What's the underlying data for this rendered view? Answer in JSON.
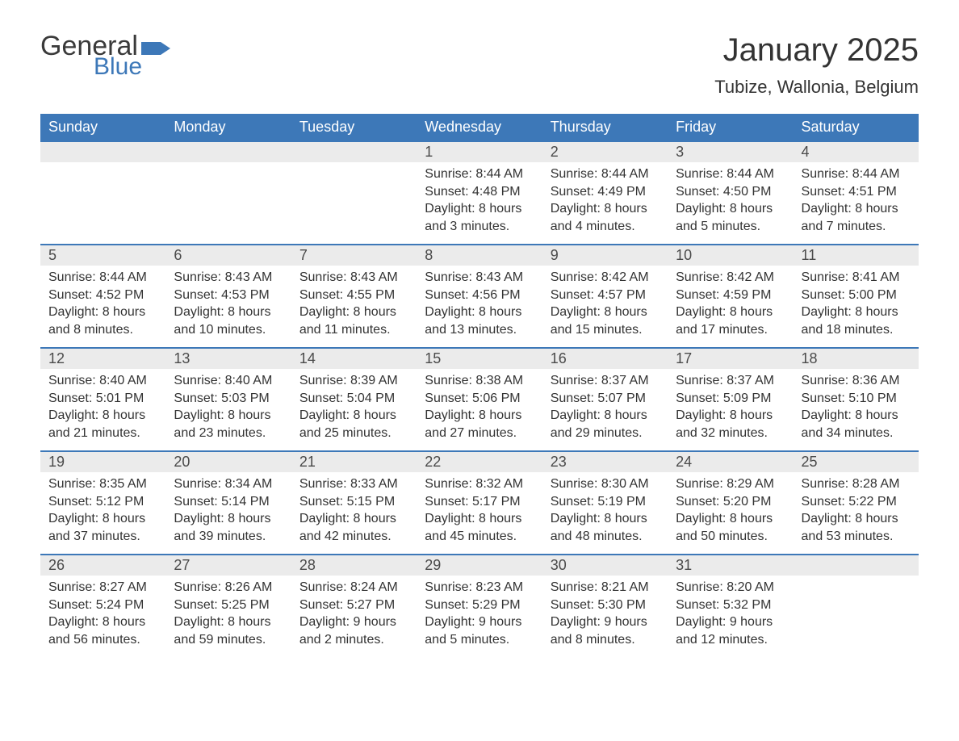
{
  "logo": {
    "word1": "General",
    "word2": "Blue",
    "flag_color": "#3d78b8",
    "text_color_dark": "#3a3a3a"
  },
  "header": {
    "title": "January 2025",
    "location": "Tubize, Wallonia, Belgium"
  },
  "colors": {
    "header_bg": "#3d78b8",
    "header_text": "#ffffff",
    "daynum_bg": "#ebebeb",
    "week_divider": "#3d78b8",
    "body_text": "#333333",
    "page_bg": "#ffffff"
  },
  "weekdays": [
    "Sunday",
    "Monday",
    "Tuesday",
    "Wednesday",
    "Thursday",
    "Friday",
    "Saturday"
  ],
  "labels": {
    "sunrise": "Sunrise:",
    "sunset": "Sunset:",
    "daylight": "Daylight:"
  },
  "weeks": [
    [
      {
        "empty": true
      },
      {
        "empty": true
      },
      {
        "empty": true
      },
      {
        "day": "1",
        "sunrise": "8:44 AM",
        "sunset": "4:48 PM",
        "daylight": "8 hours and 3 minutes."
      },
      {
        "day": "2",
        "sunrise": "8:44 AM",
        "sunset": "4:49 PM",
        "daylight": "8 hours and 4 minutes."
      },
      {
        "day": "3",
        "sunrise": "8:44 AM",
        "sunset": "4:50 PM",
        "daylight": "8 hours and 5 minutes."
      },
      {
        "day": "4",
        "sunrise": "8:44 AM",
        "sunset": "4:51 PM",
        "daylight": "8 hours and 7 minutes."
      }
    ],
    [
      {
        "day": "5",
        "sunrise": "8:44 AM",
        "sunset": "4:52 PM",
        "daylight": "8 hours and 8 minutes."
      },
      {
        "day": "6",
        "sunrise": "8:43 AM",
        "sunset": "4:53 PM",
        "daylight": "8 hours and 10 minutes."
      },
      {
        "day": "7",
        "sunrise": "8:43 AM",
        "sunset": "4:55 PM",
        "daylight": "8 hours and 11 minutes."
      },
      {
        "day": "8",
        "sunrise": "8:43 AM",
        "sunset": "4:56 PM",
        "daylight": "8 hours and 13 minutes."
      },
      {
        "day": "9",
        "sunrise": "8:42 AM",
        "sunset": "4:57 PM",
        "daylight": "8 hours and 15 minutes."
      },
      {
        "day": "10",
        "sunrise": "8:42 AM",
        "sunset": "4:59 PM",
        "daylight": "8 hours and 17 minutes."
      },
      {
        "day": "11",
        "sunrise": "8:41 AM",
        "sunset": "5:00 PM",
        "daylight": "8 hours and 18 minutes."
      }
    ],
    [
      {
        "day": "12",
        "sunrise": "8:40 AM",
        "sunset": "5:01 PM",
        "daylight": "8 hours and 21 minutes."
      },
      {
        "day": "13",
        "sunrise": "8:40 AM",
        "sunset": "5:03 PM",
        "daylight": "8 hours and 23 minutes."
      },
      {
        "day": "14",
        "sunrise": "8:39 AM",
        "sunset": "5:04 PM",
        "daylight": "8 hours and 25 minutes."
      },
      {
        "day": "15",
        "sunrise": "8:38 AM",
        "sunset": "5:06 PM",
        "daylight": "8 hours and 27 minutes."
      },
      {
        "day": "16",
        "sunrise": "8:37 AM",
        "sunset": "5:07 PM",
        "daylight": "8 hours and 29 minutes."
      },
      {
        "day": "17",
        "sunrise": "8:37 AM",
        "sunset": "5:09 PM",
        "daylight": "8 hours and 32 minutes."
      },
      {
        "day": "18",
        "sunrise": "8:36 AM",
        "sunset": "5:10 PM",
        "daylight": "8 hours and 34 minutes."
      }
    ],
    [
      {
        "day": "19",
        "sunrise": "8:35 AM",
        "sunset": "5:12 PM",
        "daylight": "8 hours and 37 minutes."
      },
      {
        "day": "20",
        "sunrise": "8:34 AM",
        "sunset": "5:14 PM",
        "daylight": "8 hours and 39 minutes."
      },
      {
        "day": "21",
        "sunrise": "8:33 AM",
        "sunset": "5:15 PM",
        "daylight": "8 hours and 42 minutes."
      },
      {
        "day": "22",
        "sunrise": "8:32 AM",
        "sunset": "5:17 PM",
        "daylight": "8 hours and 45 minutes."
      },
      {
        "day": "23",
        "sunrise": "8:30 AM",
        "sunset": "5:19 PM",
        "daylight": "8 hours and 48 minutes."
      },
      {
        "day": "24",
        "sunrise": "8:29 AM",
        "sunset": "5:20 PM",
        "daylight": "8 hours and 50 minutes."
      },
      {
        "day": "25",
        "sunrise": "8:28 AM",
        "sunset": "5:22 PM",
        "daylight": "8 hours and 53 minutes."
      }
    ],
    [
      {
        "day": "26",
        "sunrise": "8:27 AM",
        "sunset": "5:24 PM",
        "daylight": "8 hours and 56 minutes."
      },
      {
        "day": "27",
        "sunrise": "8:26 AM",
        "sunset": "5:25 PM",
        "daylight": "8 hours and 59 minutes."
      },
      {
        "day": "28",
        "sunrise": "8:24 AM",
        "sunset": "5:27 PM",
        "daylight": "9 hours and 2 minutes."
      },
      {
        "day": "29",
        "sunrise": "8:23 AM",
        "sunset": "5:29 PM",
        "daylight": "9 hours and 5 minutes."
      },
      {
        "day": "30",
        "sunrise": "8:21 AM",
        "sunset": "5:30 PM",
        "daylight": "9 hours and 8 minutes."
      },
      {
        "day": "31",
        "sunrise": "8:20 AM",
        "sunset": "5:32 PM",
        "daylight": "9 hours and 12 minutes."
      },
      {
        "empty": true
      }
    ]
  ]
}
